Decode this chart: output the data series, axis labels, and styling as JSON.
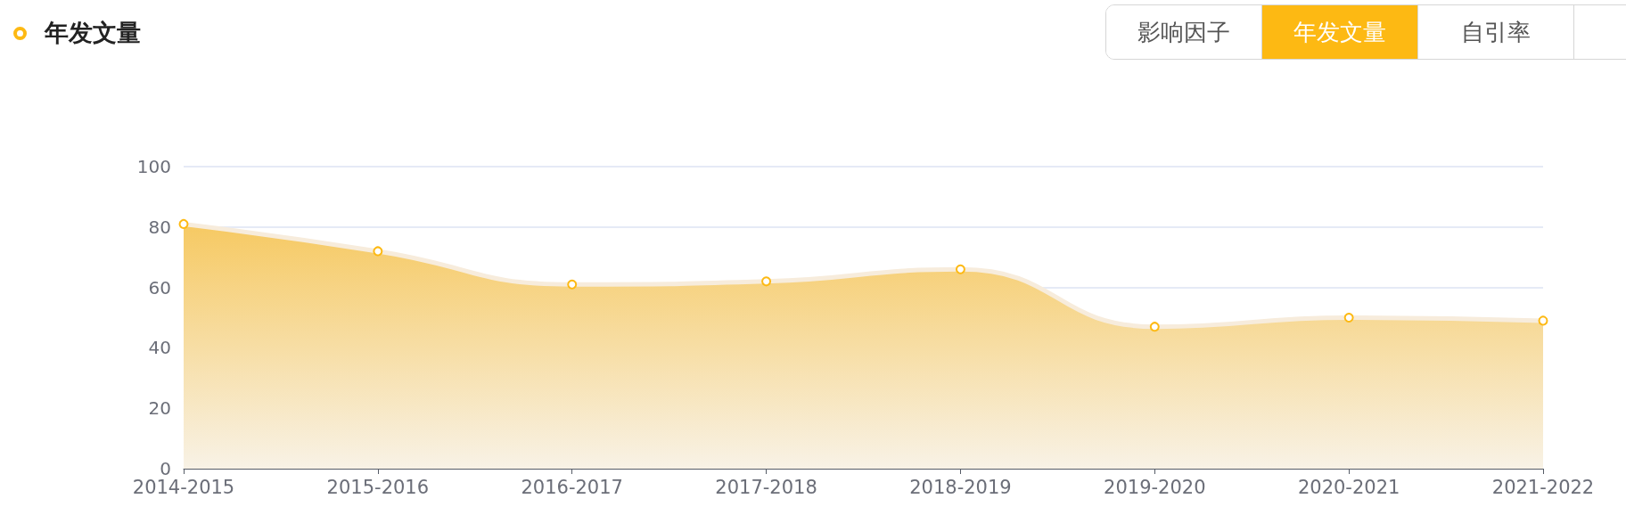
{
  "chart_data": {
    "type": "area",
    "title": "年发文量",
    "annotations": [
      "影响因子",
      "年发文量",
      "自引率"
    ],
    "categories": [
      "2014-2015",
      "2015-2016",
      "2016-2017",
      "2017-2018",
      "2018-2019",
      "2019-2020",
      "2020-2021",
      "2021-2022"
    ],
    "series": [
      {
        "color": "#fdb913",
        "values": [
          81,
          72,
          61,
          62,
          66,
          47,
          50,
          49
        ]
      }
    ],
    "ylim": [
      0,
      100
    ],
    "yticks": [
      0,
      20,
      40,
      60,
      80,
      100
    ],
    "grid": "y",
    "marker": "circle",
    "line_style": "solid"
  }
}
